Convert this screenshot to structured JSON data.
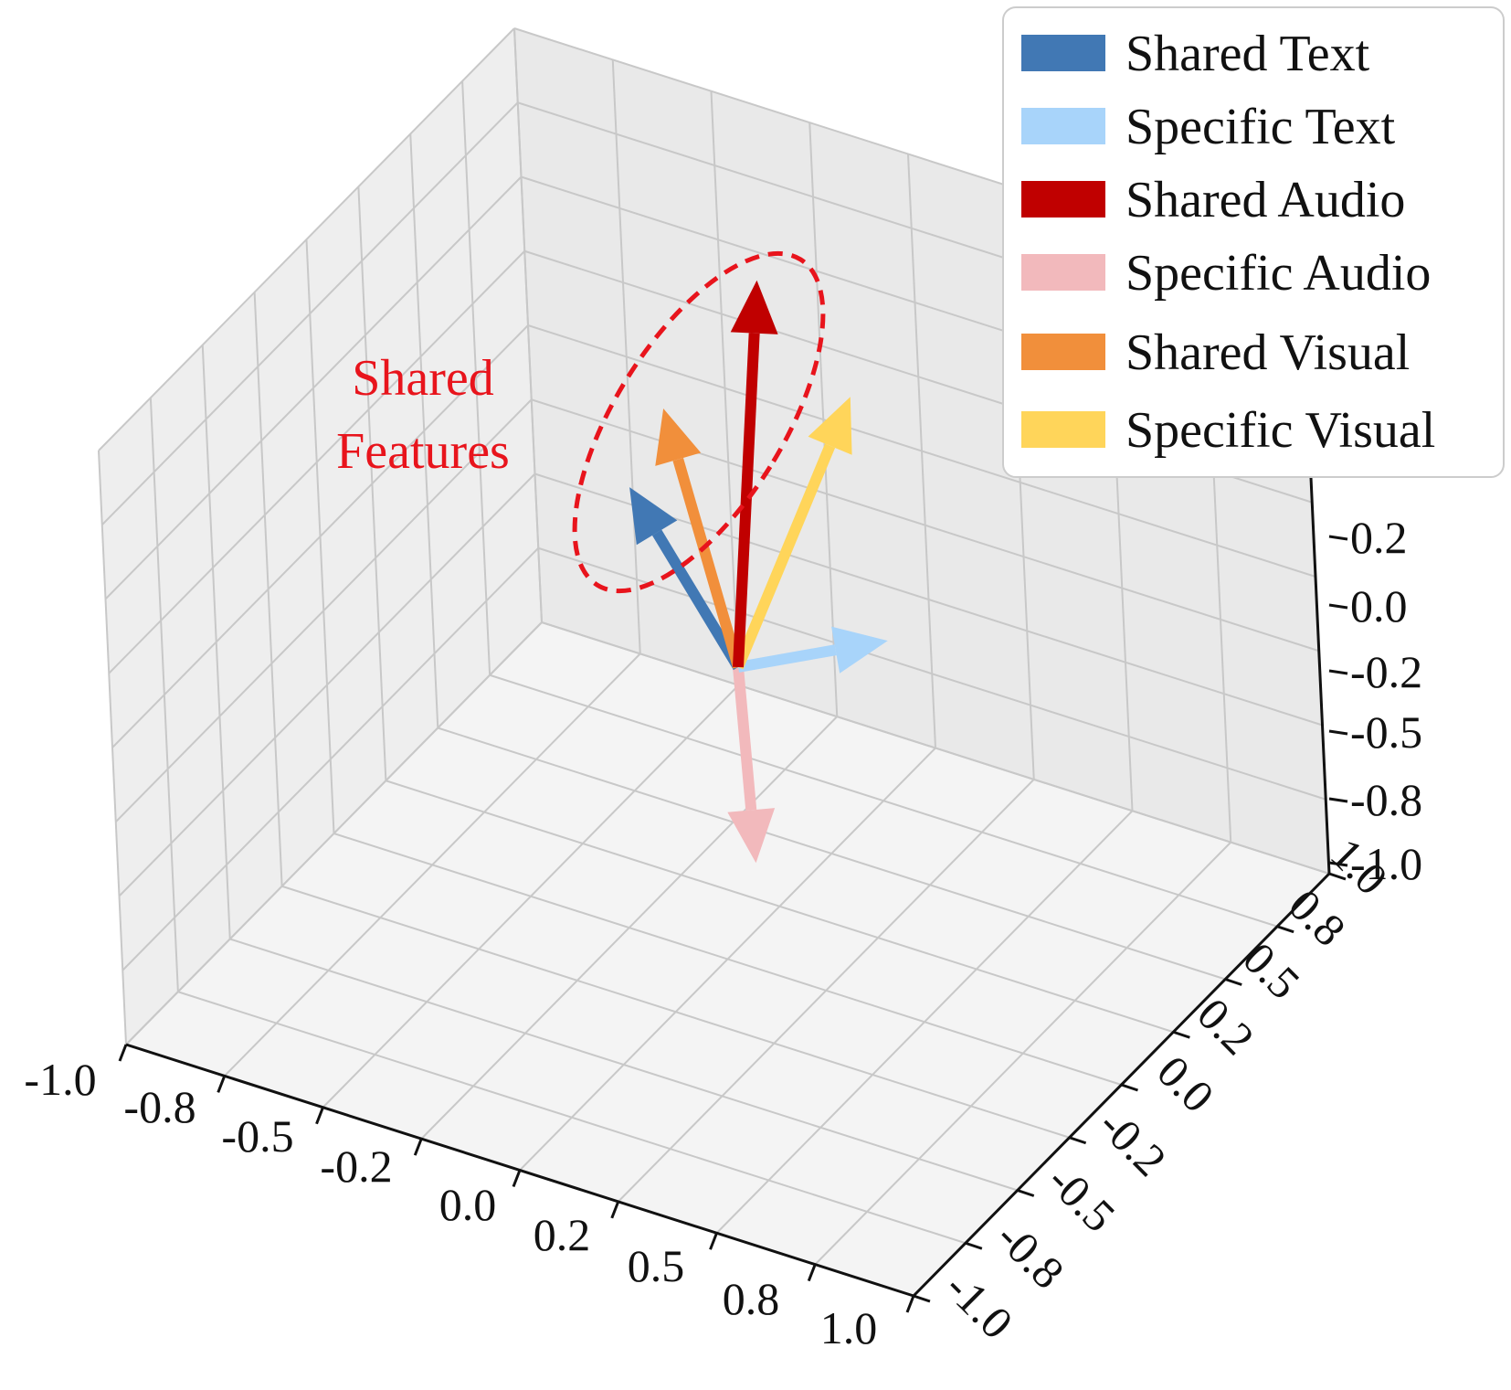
{
  "chart_data": {
    "type": "3d-quiver",
    "annotation": [
      "Shared",
      "Features"
    ],
    "x_ticks": [
      "-1.0",
      "-0.8",
      "-0.5",
      "-0.2",
      "0.0",
      "0.2",
      "0.5",
      "0.8",
      "1.0"
    ],
    "y_ticks": [
      "-1.0",
      "-0.8",
      "-0.5",
      "-0.2",
      "0.0",
      "0.2",
      "0.5",
      "0.8",
      "1.0"
    ],
    "z_ticks": [
      "-1.0",
      "-0.8",
      "-0.5",
      "-0.2",
      "0.0",
      "0.2"
    ],
    "xlim": [
      -1.0,
      1.0
    ],
    "ylim": [
      -1.0,
      1.0
    ],
    "zlim": [
      -1.0,
      1.0
    ],
    "grid": true,
    "legend_position": "top-right",
    "origin": [
      0,
      0,
      0
    ],
    "series": [
      {
        "name": "Shared Text",
        "color": "#4178b4",
        "vector": [
          -0.28,
          -0.02,
          0.45
        ]
      },
      {
        "name": "Specific Text",
        "color": "#a8d4fa",
        "vector": [
          0.4,
          0.0,
          0.1
        ]
      },
      {
        "name": "Shared Audio",
        "color": "#c00000",
        "vector": [
          0.05,
          0.0,
          1.0
        ]
      },
      {
        "name": "Specific Audio",
        "color": "#f2b9bc",
        "vector": [
          0.1,
          -0.1,
          -0.45
        ]
      },
      {
        "name": "Shared Visual",
        "color": "#f18f3b",
        "vector": [
          -0.2,
          0.0,
          0.65
        ]
      },
      {
        "name": "Specific Visual",
        "color": "#ffd55a",
        "vector": [
          0.3,
          0.0,
          0.72
        ]
      }
    ]
  }
}
